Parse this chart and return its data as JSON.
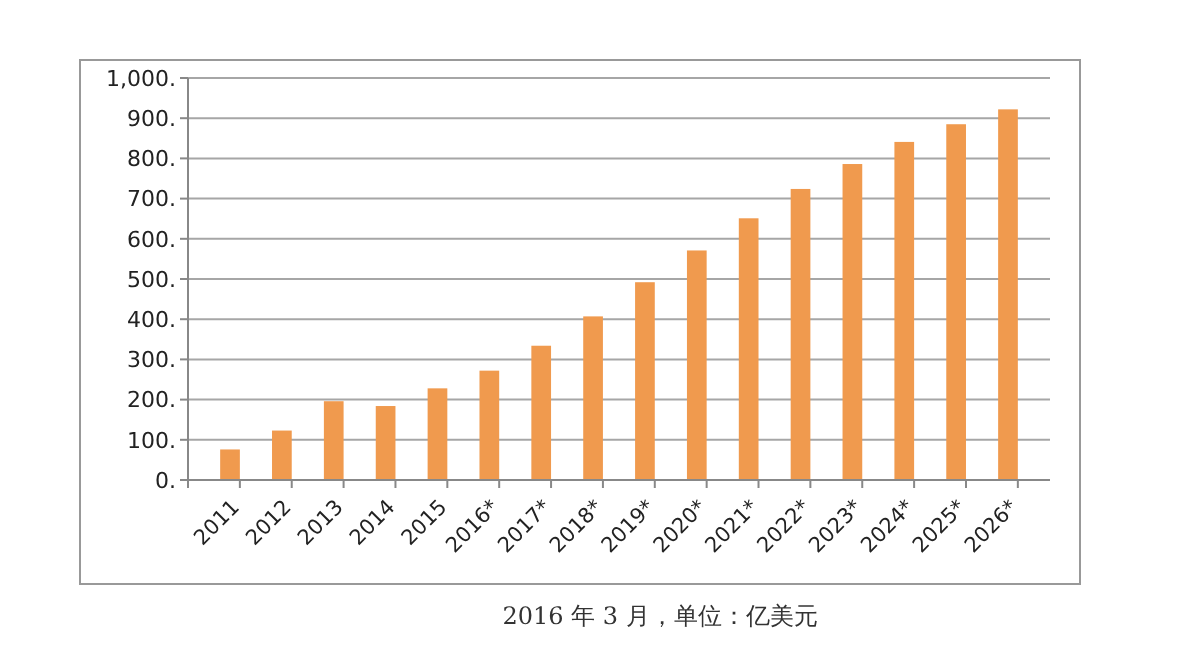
{
  "chart_data": {
    "type": "bar",
    "categories": [
      "2011",
      "2012",
      "2013",
      "2014",
      "2015",
      "2016*",
      "2017*",
      "2018*",
      "2019*",
      "2020*",
      "2021*",
      "2022*",
      "2023*",
      "2024*",
      "2025*",
      "2026*"
    ],
    "values": [
      76,
      123,
      196,
      184,
      228,
      272,
      334,
      407,
      492,
      571,
      651,
      724,
      786,
      841,
      885,
      922
    ],
    "color": "#f09a4e",
    "ylim": [
      0,
      1000
    ],
    "yticks": [
      {
        "value": 0,
        "label": "0."
      },
      {
        "value": 100,
        "label": "100."
      },
      {
        "value": 200,
        "label": "200."
      },
      {
        "value": 300,
        "label": "300."
      },
      {
        "value": 400,
        "label": "400."
      },
      {
        "value": 500,
        "label": "500."
      },
      {
        "value": 600,
        "label": "600."
      },
      {
        "value": 700,
        "label": "700."
      },
      {
        "value": 800,
        "label": "800."
      },
      {
        "value": 900,
        "label": "900."
      },
      {
        "value": 1000,
        "label": "1,000."
      }
    ],
    "grid": "y",
    "annotations": [
      "2016 年 3 月，单位：亿美元"
    ]
  }
}
